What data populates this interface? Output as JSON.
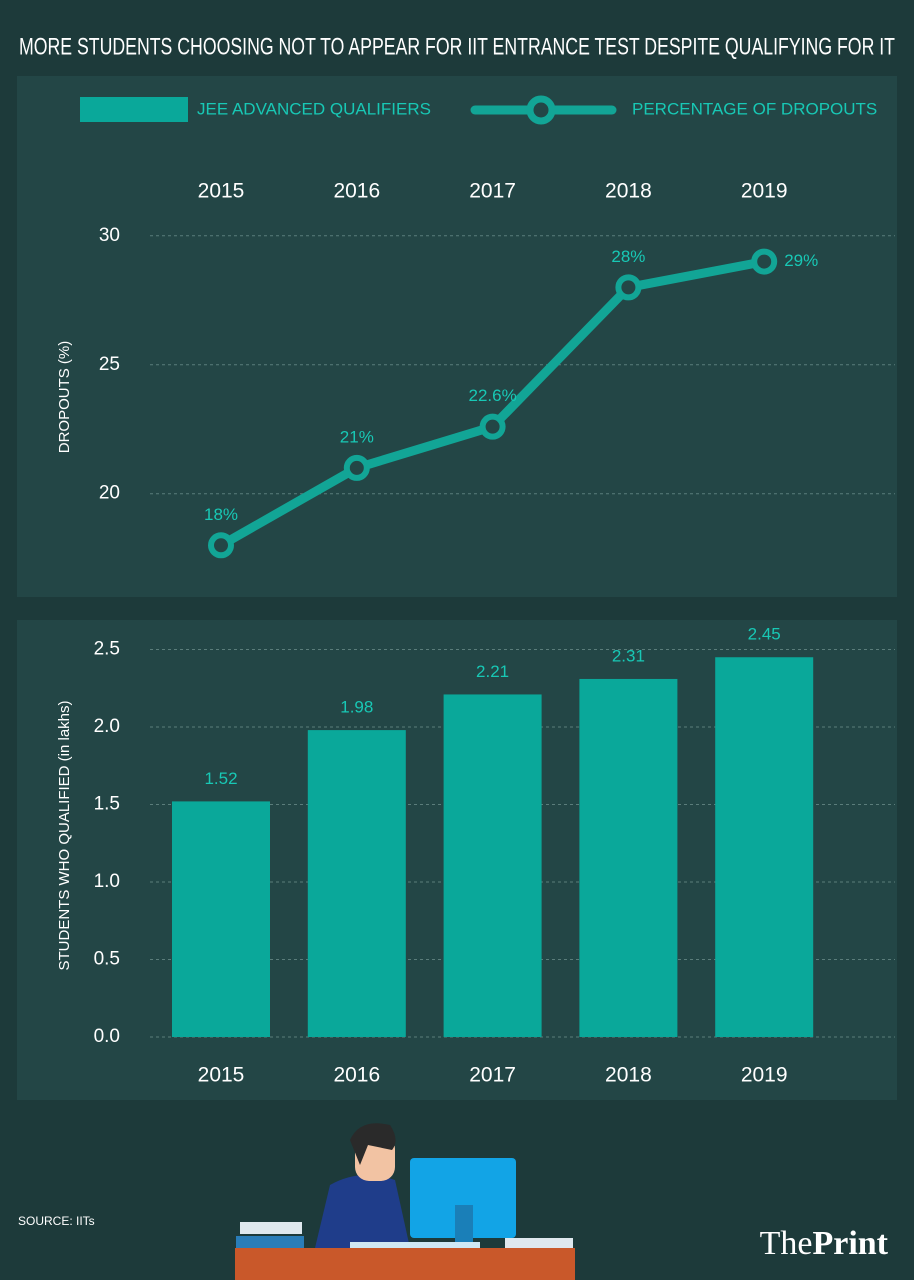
{
  "title": "MORE STUDENTS CHOOSING NOT TO APPEAR FOR IIT ENTRANCE TEST DESPITE QUALIFYING FOR IT",
  "source": "SOURCE: IITs",
  "brand": {
    "first": "The",
    "second": "Print"
  },
  "chart_data": [
    {
      "type": "line",
      "y_label": "DROPOUTS (%)",
      "categories": [
        "2015",
        "2016",
        "2017",
        "2018",
        "2019"
      ],
      "series": [
        {
          "name": "PERCENTAGE OF DROPOUTS",
          "color": "#12a596",
          "values": [
            18,
            21,
            22.6,
            28,
            29
          ],
          "value_labels": [
            "18%",
            "21%",
            "22.6%",
            "28%",
            "29%"
          ]
        }
      ],
      "ylim": [
        16.5,
        31
      ],
      "yticks": [
        20,
        25,
        30
      ],
      "grid": true
    },
    {
      "type": "bar",
      "y_label": "STUDENTS WHO QUALIFIED (in lakhs)",
      "categories": [
        "2015",
        "2016",
        "2017",
        "2018",
        "2019"
      ],
      "series": [
        {
          "name": "JEE ADVANCED QUALIFIERS",
          "color": "#0aa89a",
          "values": [
            1.52,
            1.98,
            2.21,
            2.31,
            2.45
          ]
        }
      ],
      "ylim": [
        0,
        2.6
      ],
      "yticks": [
        {
          "value": 0,
          "label": "0.0"
        },
        0.5,
        {
          "value": 1,
          "label": "1.0"
        },
        1.5,
        {
          "value": 2,
          "label": "2.0"
        },
        2.5
      ],
      "grid": true
    }
  ]
}
